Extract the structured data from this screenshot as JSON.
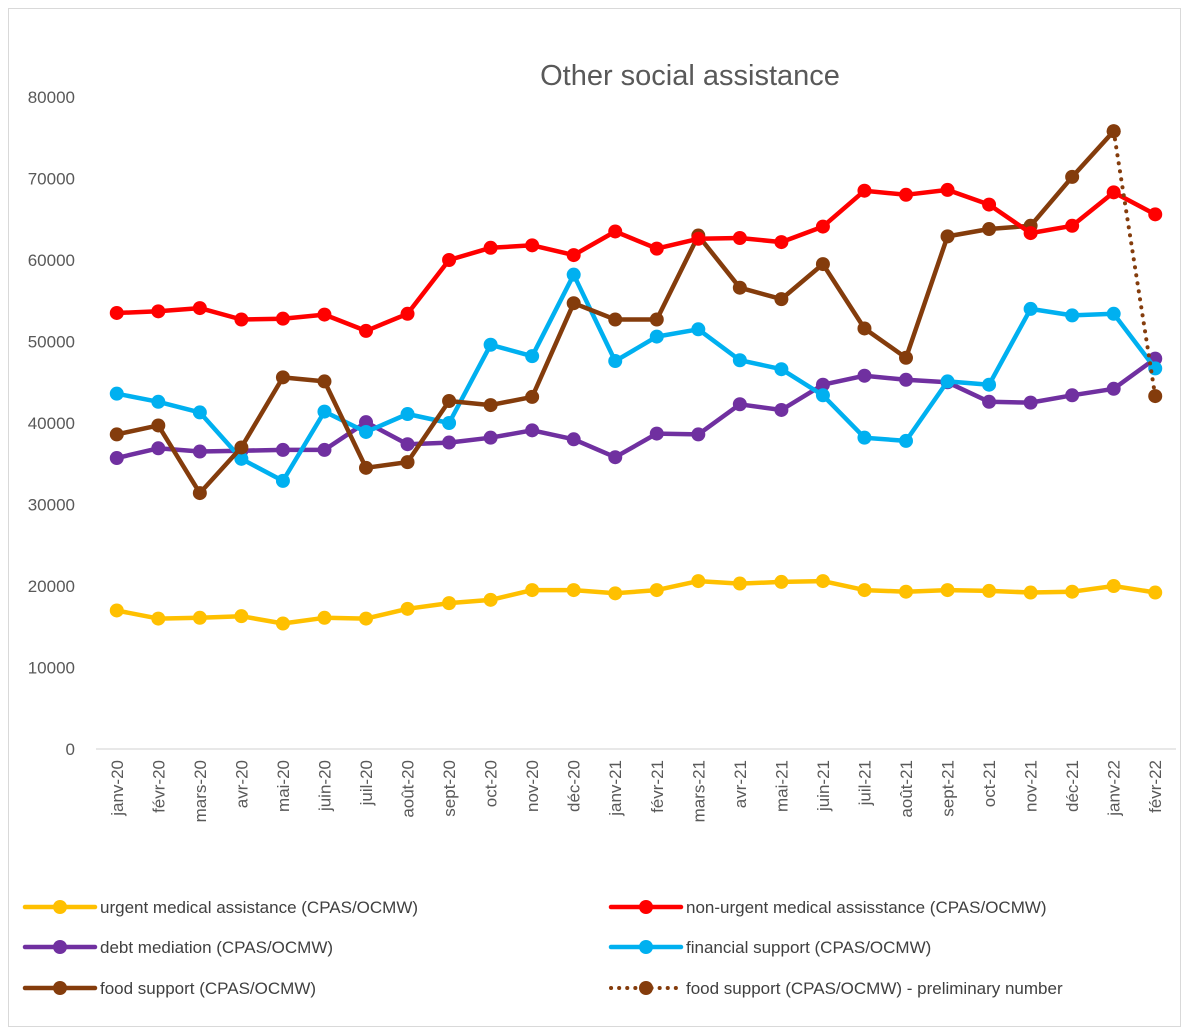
{
  "chart_data": {
    "type": "line",
    "title": "Other social assistance",
    "xlabel": "",
    "ylabel": "",
    "ylim": [
      0,
      80000
    ],
    "yticks": [
      0,
      10000,
      20000,
      30000,
      40000,
      50000,
      60000,
      70000,
      80000
    ],
    "grid": false,
    "legend_position": "bottom",
    "categories": [
      "janv-20",
      "févr-20",
      "mars-20",
      "avr-20",
      "mai-20",
      "juin-20",
      "juil-20",
      "août-20",
      "sept-20",
      "oct-20",
      "nov-20",
      "déc-20",
      "janv-21",
      "févr-21",
      "mars-21",
      "avr-21",
      "mai-21",
      "juin-21",
      "juil-21",
      "août-21",
      "sept-21",
      "oct-21",
      "nov-21",
      "déc-21",
      "janv-22",
      "févr-22"
    ],
    "series": [
      {
        "name": "urgent medical assistance (CPAS/OCMW)",
        "color": "#ffc000",
        "style": "solid",
        "values": [
          17000,
          16000,
          16100,
          16300,
          15400,
          16100,
          16000,
          17200,
          17900,
          18300,
          19500,
          19500,
          19100,
          19500,
          20600,
          20300,
          20500,
          20600,
          19500,
          19300,
          19500,
          19400,
          19200,
          19300,
          20000,
          19200
        ]
      },
      {
        "name": "non-urgent medical assisstance (CPAS/OCMW)",
        "color": "#ff0000",
        "style": "solid",
        "values": [
          53500,
          53700,
          54100,
          52700,
          52800,
          53300,
          51300,
          53400,
          60000,
          61500,
          61800,
          60600,
          63500,
          61400,
          62600,
          62700,
          62200,
          64100,
          68500,
          68000,
          68600,
          66800,
          63300,
          64200,
          68300,
          65600
        ]
      },
      {
        "name": "debt mediation (CPAS/OCMW)",
        "color": "#7030a0",
        "style": "solid",
        "values": [
          35700,
          36900,
          36500,
          36600,
          36700,
          36700,
          40100,
          37400,
          37600,
          38200,
          39100,
          38000,
          35800,
          38700,
          38600,
          42300,
          41600,
          44700,
          45800,
          45300,
          45000,
          42600,
          42500,
          43400,
          44200,
          47900
        ]
      },
      {
        "name": "financial support (CPAS/OCMW)",
        "color": "#00b0f0",
        "style": "solid",
        "values": [
          43600,
          42600,
          41300,
          35600,
          32900,
          41400,
          38900,
          41100,
          40000,
          49600,
          48200,
          58200,
          47600,
          50600,
          51500,
          47700,
          46600,
          43400,
          38200,
          37800,
          45100,
          44700,
          54000,
          53200,
          53400,
          46700
        ]
      },
      {
        "name": "food support (CPAS/OCMW)",
        "color": "#843c0c",
        "style": "solid",
        "values": [
          38600,
          39700,
          31400,
          37000,
          45600,
          45100,
          34500,
          35200,
          42700,
          42200,
          43200,
          54700,
          52700,
          52700,
          63000,
          56600,
          55200,
          59500,
          51600,
          48000,
          62900,
          63800,
          64200,
          70200,
          75800,
          null
        ]
      },
      {
        "name": "food support (CPAS/OCMW) - preliminary number",
        "color": "#843c0c",
        "style": "dotted",
        "values": [
          null,
          null,
          null,
          null,
          null,
          null,
          null,
          null,
          null,
          null,
          null,
          null,
          null,
          null,
          null,
          null,
          null,
          null,
          null,
          null,
          null,
          null,
          null,
          null,
          75800,
          43300
        ]
      }
    ]
  }
}
